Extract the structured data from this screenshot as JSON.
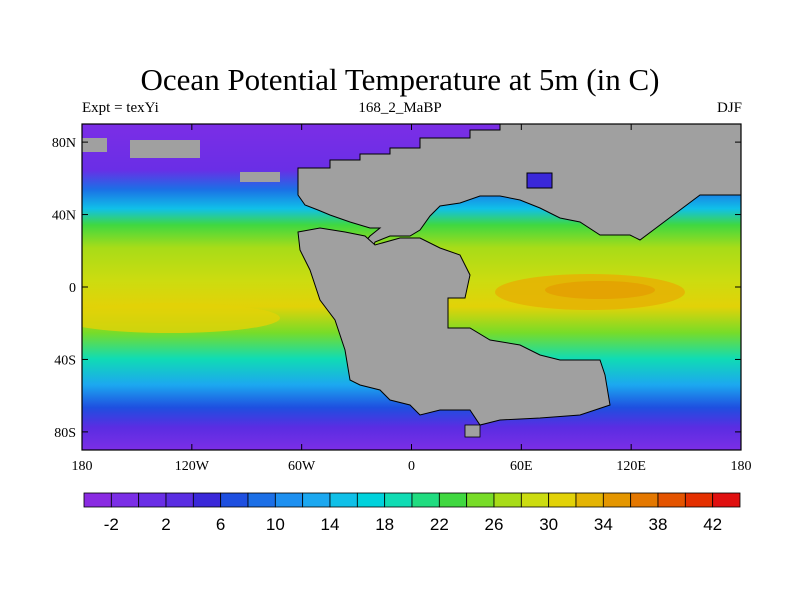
{
  "map": {
    "title": "Ocean Potential Temperature at 5m (in C)",
    "left_label": "Expt = texYi",
    "center_label": "168_2_MaBP",
    "right_label": "DJF",
    "lon_ticks": [
      {
        "value": -180,
        "label": "180"
      },
      {
        "value": -120,
        "label": "120W"
      },
      {
        "value": -60,
        "label": "60W"
      },
      {
        "value": 0,
        "label": "0"
      },
      {
        "value": 60,
        "label": "60E"
      },
      {
        "value": 120,
        "label": "120E"
      },
      {
        "value": 180,
        "label": "180"
      }
    ],
    "lat_ticks": [
      {
        "value": 80,
        "label": "80N"
      },
      {
        "value": 40,
        "label": "40N"
      },
      {
        "value": 0,
        "label": "0"
      },
      {
        "value": -40,
        "label": "40S"
      },
      {
        "value": -80,
        "label": "80S"
      }
    ],
    "lon_range": [
      -180,
      180
    ],
    "lat_range": [
      -90,
      90
    ],
    "land_color": "#A0A0A0"
  },
  "colorbar": {
    "colors": [
      "#8A2BE2",
      "#7B2EE6",
      "#6A2EE6",
      "#5A2DE2",
      "#3A28D9",
      "#1E4FE0",
      "#1C6FE6",
      "#1E90F0",
      "#1CA8F0",
      "#10C0E8",
      "#00D2DC",
      "#10DCB4",
      "#20DC80",
      "#40D840",
      "#78DC28",
      "#A8DC18",
      "#CCDC10",
      "#E2D208",
      "#E4B404",
      "#E49600",
      "#E47800",
      "#E45400",
      "#E43000",
      "#E01010"
    ],
    "labels": [
      "-2",
      "2",
      "6",
      "10",
      "14",
      "18",
      "22",
      "26",
      "30",
      "34",
      "38",
      "42"
    ]
  }
}
